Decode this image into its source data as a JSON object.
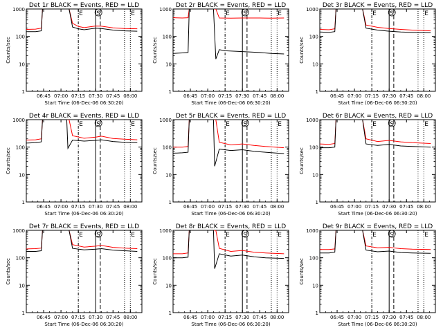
{
  "figure": {
    "series_colors": {
      "events": "#000000",
      "lld": "#ff0000"
    }
  },
  "chart_data": [
    {
      "type": "line",
      "title": "Det 1r BLACK = Events, RED = LLD",
      "xlabel": "Start Time (06-Dec-06 06:30:20)",
      "ylabel": "Counts/sec",
      "y_scale": "log",
      "ylim": [
        1,
        1000
      ],
      "y_ticks": [
        "1",
        "10",
        "100",
        "1000"
      ],
      "x_ticks": [
        "06:45",
        "07:00",
        "07:15",
        "07:30",
        "07:45",
        "08:00"
      ],
      "markers": [
        "E",
        "S",
        "E"
      ],
      "series": [
        {
          "color": "#ff0000",
          "x": [
            "06:30",
            "06:38",
            "06:43",
            "06:44",
            "06:46",
            "07:05",
            "07:07",
            "07:10",
            "07:15",
            "07:20",
            "07:30",
            "07:35",
            "07:45",
            "07:55",
            "08:06"
          ],
          "values": [
            180,
            185,
            200,
            1000,
            1000,
            1000,
            1000,
            300,
            230,
            210,
            240,
            235,
            205,
            195,
            190
          ]
        },
        {
          "color": "#000000",
          "x": [
            "06:30",
            "06:38",
            "06:43",
            "06:44",
            "06:46",
            "07:05",
            "07:07",
            "07:10",
            "07:15",
            "07:20",
            "07:30",
            "07:35",
            "07:45",
            "07:55",
            "08:06"
          ],
          "values": [
            150,
            150,
            160,
            1000,
            1000,
            1000,
            1000,
            220,
            190,
            175,
            200,
            195,
            170,
            160,
            155
          ]
        }
      ]
    },
    {
      "type": "line",
      "title": "Det 2r BLACK = Events, RED = LLD",
      "xlabel": "Start Time (06-Dec-06 06:30:20)",
      "ylabel": "Counts/sec",
      "y_scale": "log",
      "ylim": [
        1,
        1000
      ],
      "y_ticks": [
        "1",
        "10",
        "100",
        "1000"
      ],
      "x_ticks": [
        "06:45",
        "07:00",
        "07:15",
        "07:30",
        "07:45",
        "08:00"
      ],
      "markers": [
        "E",
        "S",
        "E"
      ],
      "series": [
        {
          "color": "#ff0000",
          "x": [
            "06:30",
            "06:38",
            "06:43",
            "06:44",
            "06:46",
            "07:05",
            "07:07",
            "07:10",
            "07:20",
            "07:30",
            "07:45",
            "07:55",
            "08:06"
          ],
          "values": [
            480,
            470,
            480,
            1000,
            1000,
            1000,
            1000,
            470,
            465,
            470,
            470,
            465,
            470
          ]
        },
        {
          "color": "#000000",
          "x": [
            "06:30",
            "06:38",
            "06:43",
            "06:44",
            "06:46",
            "07:05",
            "07:07",
            "07:10",
            "07:15",
            "07:30",
            "07:45",
            "07:55",
            "08:06"
          ],
          "values": [
            24,
            25,
            26,
            1000,
            1000,
            1000,
            15,
            33,
            30,
            28,
            26,
            24,
            23
          ]
        }
      ]
    },
    {
      "type": "line",
      "title": "Det 3r BLACK = Events, RED = LLD",
      "xlabel": "Start Time (06-Dec-06 06:30:20)",
      "ylabel": "Counts/sec",
      "y_scale": "log",
      "ylim": [
        1,
        1000
      ],
      "y_ticks": [
        "1",
        "10",
        "100",
        "1000"
      ],
      "x_ticks": [
        "06:45",
        "07:00",
        "07:15",
        "07:30",
        "07:45",
        "08:00"
      ],
      "markers": [
        "E",
        "S",
        "E"
      ],
      "series": [
        {
          "color": "#ff0000",
          "x": [
            "06:30",
            "06:38",
            "06:43",
            "06:44",
            "06:46",
            "07:05",
            "07:07",
            "07:10",
            "07:20",
            "07:30",
            "07:40",
            "07:50",
            "08:06"
          ],
          "values": [
            180,
            175,
            190,
            1000,
            1000,
            1000,
            1000,
            260,
            215,
            195,
            180,
            170,
            160
          ]
        },
        {
          "color": "#000000",
          "x": [
            "06:30",
            "06:38",
            "06:43",
            "06:44",
            "06:46",
            "07:05",
            "07:07",
            "07:10",
            "07:20",
            "07:30",
            "07:40",
            "07:50",
            "08:06"
          ],
          "values": [
            145,
            140,
            150,
            1000,
            1000,
            1000,
            1000,
            200,
            170,
            155,
            145,
            140,
            135
          ]
        }
      ]
    },
    {
      "type": "line",
      "title": "Det 4r BLACK = Events, RED = LLD",
      "xlabel": "Start Time (06-Dec-06 06:30:20)",
      "ylabel": "Counts/sec",
      "y_scale": "log",
      "ylim": [
        1,
        1000
      ],
      "y_ticks": [
        "1",
        "10",
        "100",
        "1000"
      ],
      "x_ticks": [
        "06:45",
        "07:00",
        "07:15",
        "07:30",
        "07:45",
        "08:00"
      ],
      "markers": [
        "E",
        "S",
        "E"
      ],
      "series": [
        {
          "color": "#ff0000",
          "x": [
            "06:30",
            "06:38",
            "06:43",
            "06:44",
            "06:46",
            "07:05",
            "07:07",
            "07:10",
            "07:20",
            "07:30",
            "07:35",
            "07:45",
            "07:55",
            "08:06"
          ],
          "values": [
            180,
            185,
            200,
            1000,
            1000,
            1000,
            1000,
            260,
            210,
            230,
            250,
            205,
            195,
            185
          ]
        },
        {
          "color": "#000000",
          "x": [
            "06:30",
            "06:38",
            "06:43",
            "06:44",
            "06:46",
            "07:05",
            "07:06",
            "07:10",
            "07:20",
            "07:30",
            "07:35",
            "07:45",
            "07:55",
            "08:06"
          ],
          "values": [
            140,
            145,
            155,
            1000,
            1000,
            1000,
            90,
            180,
            165,
            175,
            185,
            160,
            150,
            145
          ]
        }
      ]
    },
    {
      "type": "line",
      "title": "Det 5r BLACK = Events, RED = LLD",
      "xlabel": "Start Time (06-Dec-06 06:30:20)",
      "ylabel": "Counts/sec",
      "y_scale": "log",
      "ylim": [
        1,
        1000
      ],
      "y_ticks": [
        "1",
        "10",
        "100",
        "1000"
      ],
      "x_ticks": [
        "06:45",
        "07:00",
        "07:15",
        "07:30",
        "07:45",
        "08:00"
      ],
      "markers": [
        "E",
        "S",
        "E"
      ],
      "series": [
        {
          "color": "#ff0000",
          "x": [
            "06:30",
            "06:38",
            "06:43",
            "06:44",
            "06:46",
            "07:05",
            "07:07",
            "07:10",
            "07:20",
            "07:30",
            "07:40",
            "07:50",
            "08:06"
          ],
          "values": [
            100,
            100,
            105,
            1000,
            1000,
            1000,
            1000,
            150,
            120,
            130,
            115,
            105,
            95
          ]
        },
        {
          "color": "#000000",
          "x": [
            "06:30",
            "06:38",
            "06:43",
            "06:44",
            "06:46",
            "07:05",
            "07:06",
            "07:10",
            "07:20",
            "07:30",
            "07:40",
            "07:50",
            "08:06"
          ],
          "values": [
            60,
            62,
            65,
            1000,
            1000,
            1000,
            20,
            85,
            75,
            80,
            70,
            65,
            58
          ]
        }
      ]
    },
    {
      "type": "line",
      "title": "Det 6r BLACK = Events, RED = LLD",
      "xlabel": "Start Time (06-Dec-06 06:30:20)",
      "ylabel": "Counts/sec",
      "y_scale": "log",
      "ylim": [
        1,
        1000
      ],
      "y_ticks": [
        "1",
        "10",
        "100",
        "1000"
      ],
      "x_ticks": [
        "06:45",
        "07:00",
        "07:15",
        "07:30",
        "07:45",
        "08:00"
      ],
      "markers": [
        "E",
        "S",
        "E"
      ],
      "series": [
        {
          "color": "#ff0000",
          "x": [
            "06:30",
            "06:38",
            "06:43",
            "06:44",
            "06:46",
            "07:05",
            "07:07",
            "07:10",
            "07:20",
            "07:30",
            "07:40",
            "07:50",
            "08:06"
          ],
          "values": [
            130,
            125,
            135,
            1000,
            1000,
            1000,
            1000,
            200,
            160,
            175,
            155,
            145,
            135
          ]
        },
        {
          "color": "#000000",
          "x": [
            "06:30",
            "06:38",
            "06:43",
            "06:44",
            "06:46",
            "07:05",
            "07:07",
            "07:10",
            "07:20",
            "07:30",
            "07:40",
            "07:50",
            "08:06"
          ],
          "values": [
            95,
            95,
            100,
            1000,
            1000,
            1000,
            1000,
            130,
            115,
            125,
            110,
            105,
            100
          ]
        }
      ]
    },
    {
      "type": "line",
      "title": "Det 7r BLACK = Events, RED = LLD",
      "xlabel": "Start Time (06-Dec-06 06:30:20)",
      "ylabel": "Counts/sec",
      "y_scale": "log",
      "ylim": [
        1,
        1000
      ],
      "y_ticks": [
        "1",
        "10",
        "100",
        "1000"
      ],
      "x_ticks": [
        "06:45",
        "07:00",
        "07:15",
        "07:30",
        "07:45",
        "08:00"
      ],
      "markers": [
        "E",
        "S",
        "E"
      ],
      "series": [
        {
          "color": "#ff0000",
          "x": [
            "06:30",
            "06:38",
            "06:43",
            "06:44",
            "06:46",
            "07:05",
            "07:07",
            "07:10",
            "07:20",
            "07:30",
            "07:35",
            "07:45",
            "07:55",
            "08:06"
          ],
          "values": [
            210,
            215,
            225,
            1000,
            1000,
            1000,
            1000,
            300,
            245,
            265,
            280,
            240,
            225,
            215
          ]
        },
        {
          "color": "#000000",
          "x": [
            "06:30",
            "06:38",
            "06:43",
            "06:44",
            "06:46",
            "07:05",
            "07:07",
            "07:10",
            "07:20",
            "07:30",
            "07:35",
            "07:45",
            "07:55",
            "08:06"
          ],
          "values": [
            170,
            170,
            180,
            1000,
            1000,
            1000,
            1000,
            220,
            195,
            205,
            215,
            190,
            180,
            170
          ]
        }
      ]
    },
    {
      "type": "line",
      "title": "Det 8r BLACK = Events, RED = LLD",
      "xlabel": "Start Time (06-Dec-06 06:30:20)",
      "ylabel": "Counts/sec",
      "y_scale": "log",
      "ylim": [
        1,
        1000
      ],
      "y_ticks": [
        "1",
        "10",
        "100",
        "1000"
      ],
      "x_ticks": [
        "06:45",
        "07:00",
        "07:15",
        "07:30",
        "07:45",
        "08:00"
      ],
      "markers": [
        "E",
        "S",
        "E"
      ],
      "series": [
        {
          "color": "#ff0000",
          "x": [
            "06:30",
            "06:38",
            "06:43",
            "06:44",
            "06:46",
            "07:05",
            "07:07",
            "07:10",
            "07:20",
            "07:30",
            "07:40",
            "07:50",
            "08:06"
          ],
          "values": [
            140,
            140,
            150,
            1000,
            1000,
            1000,
            1000,
            220,
            170,
            185,
            160,
            150,
            140
          ]
        },
        {
          "color": "#000000",
          "x": [
            "06:30",
            "06:38",
            "06:43",
            "06:44",
            "06:46",
            "07:05",
            "07:06",
            "07:10",
            "07:20",
            "07:30",
            "07:40",
            "07:50",
            "08:06"
          ],
          "values": [
            100,
            100,
            105,
            1000,
            1000,
            1000,
            40,
            140,
            115,
            125,
            108,
            100,
            95
          ]
        }
      ]
    },
    {
      "type": "line",
      "title": "Det 9r BLACK = Events, RED = LLD",
      "xlabel": "Start Time (06-Dec-06 06:30:20)",
      "ylabel": "Counts/sec",
      "y_scale": "log",
      "ylim": [
        1,
        1000
      ],
      "y_ticks": [
        "1",
        "10",
        "100",
        "1000"
      ],
      "x_ticks": [
        "06:45",
        "07:00",
        "07:15",
        "07:30",
        "07:45",
        "08:00"
      ],
      "markers": [
        "E",
        "S",
        "E"
      ],
      "series": [
        {
          "color": "#ff0000",
          "x": [
            "06:30",
            "06:38",
            "06:43",
            "06:44",
            "06:46",
            "07:05",
            "07:07",
            "07:10",
            "07:20",
            "07:30",
            "07:40",
            "07:50",
            "08:06"
          ],
          "values": [
            200,
            200,
            210,
            1000,
            1000,
            1000,
            1000,
            270,
            230,
            240,
            215,
            205,
            200
          ]
        },
        {
          "color": "#000000",
          "x": [
            "06:30",
            "06:38",
            "06:43",
            "06:44",
            "06:46",
            "07:05",
            "07:07",
            "07:10",
            "07:20",
            "07:30",
            "07:40",
            "07:50",
            "08:06"
          ],
          "values": [
            150,
            150,
            160,
            1000,
            1000,
            1000,
            1000,
            190,
            165,
            175,
            155,
            150,
            145
          ]
        }
      ]
    }
  ]
}
